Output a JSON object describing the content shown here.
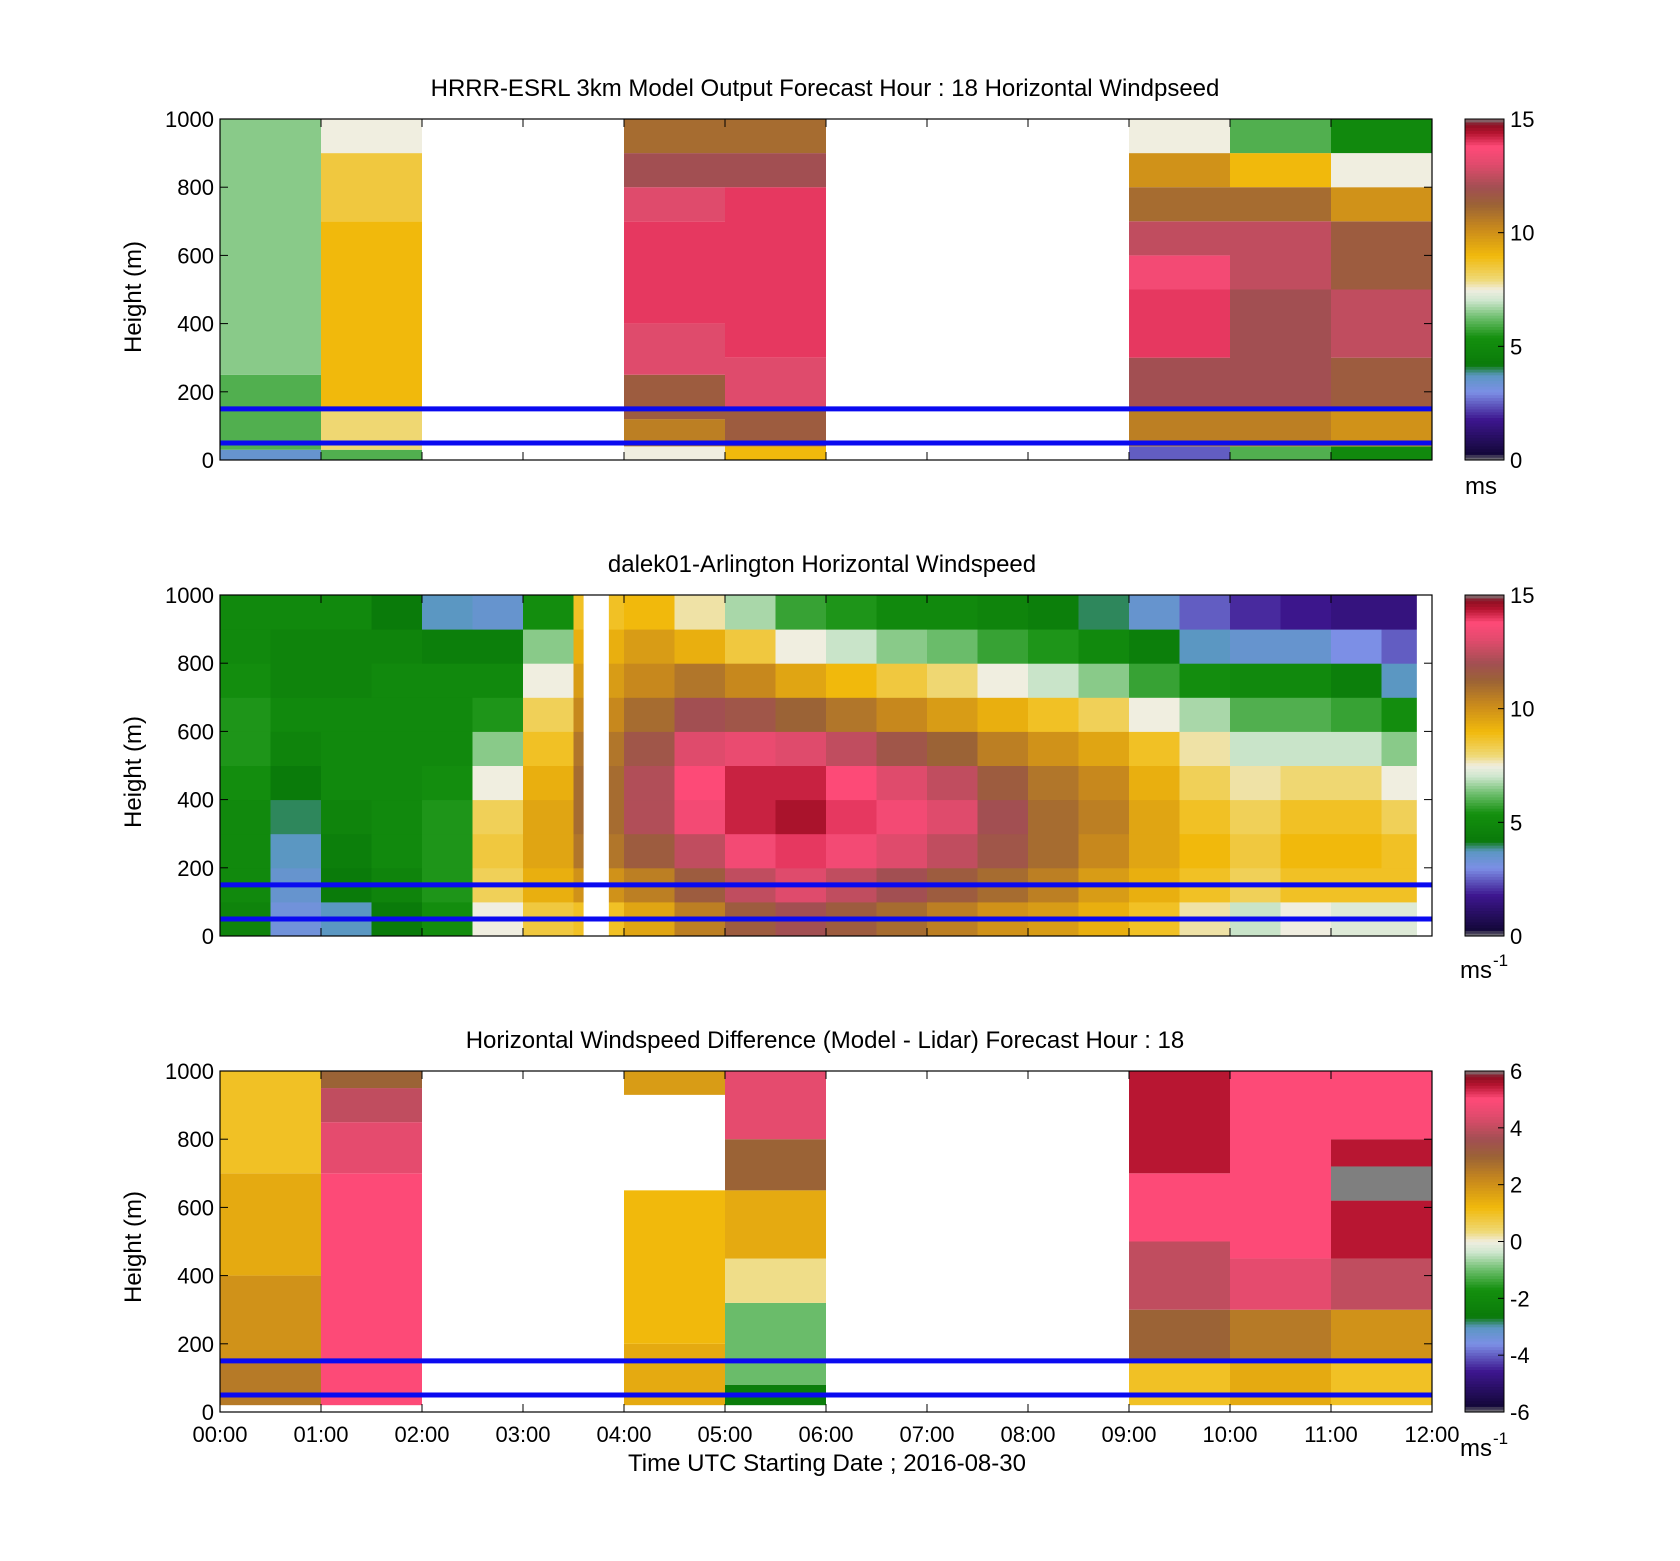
{
  "chart_data": [
    {
      "type": "heatmap",
      "id": "model",
      "title": "HRRR-ESRL 3km Model Output   Forecast Hour : 18 Horizontal Windpseed",
      "ylabel": "Height (m)",
      "xlabel": "",
      "ylim": [
        0,
        1000
      ],
      "xlim": [
        0,
        12
      ],
      "yticks": [
        "0",
        "200",
        "400",
        "600",
        "800",
        "1000"
      ],
      "colorbar": {
        "min": 0,
        "max": 15,
        "ticks": [
          "0",
          "5",
          "10",
          "15"
        ],
        "unit": "ms",
        "unit_sup": ""
      },
      "reference_lines_m": [
        150,
        50
      ],
      "bands": [
        {
          "hour_start": 0,
          "hour_end": 1,
          "levels": [
            [
              0,
              30,
              3.5
            ],
            [
              30,
              250,
              6.0
            ],
            [
              250,
              1000,
              6.5
            ]
          ]
        },
        {
          "hour_start": 1,
          "hour_end": 2,
          "levels": [
            [
              0,
              30,
              6.0
            ],
            [
              30,
              150,
              8.0
            ],
            [
              150,
              700,
              9.0
            ],
            [
              700,
              900,
              8.5
            ],
            [
              900,
              1000,
              7.5
            ]
          ]
        },
        {
          "hour_start": 4,
          "hour_end": 5,
          "levels": [
            [
              0,
              40,
              7.5
            ],
            [
              40,
              120,
              10.5
            ],
            [
              120,
              250,
              11.5
            ],
            [
              250,
              400,
              13.0
            ],
            [
              400,
              700,
              14.0
            ],
            [
              700,
              800,
              13.0
            ],
            [
              800,
              900,
              12.0
            ],
            [
              900,
              1000,
              11.0
            ]
          ]
        },
        {
          "hour_start": 5,
          "hour_end": 6,
          "levels": [
            [
              0,
              40,
              9.0
            ],
            [
              40,
              150,
              11.5
            ],
            [
              150,
              300,
              13.0
            ],
            [
              300,
              800,
              14.0
            ],
            [
              800,
              900,
              12.0
            ],
            [
              900,
              1000,
              11.0
            ]
          ]
        },
        {
          "hour_start": 9,
          "hour_end": 10,
          "levels": [
            [
              0,
              40,
              2.5
            ],
            [
              40,
              150,
              10.5
            ],
            [
              150,
              300,
              12.0
            ],
            [
              300,
              500,
              14.0
            ],
            [
              500,
              600,
              13.5
            ],
            [
              600,
              700,
              12.5
            ],
            [
              700,
              800,
              11.0
            ],
            [
              800,
              900,
              10.0
            ],
            [
              900,
              1000,
              7.5
            ]
          ]
        },
        {
          "hour_start": 10,
          "hour_end": 11,
          "levels": [
            [
              0,
              40,
              6.0
            ],
            [
              40,
              150,
              10.5
            ],
            [
              150,
              500,
              12.0
            ],
            [
              500,
              700,
              12.5
            ],
            [
              700,
              800,
              11.0
            ],
            [
              800,
              900,
              9.0
            ],
            [
              900,
              1000,
              6.0
            ]
          ]
        },
        {
          "hour_start": 11,
          "hour_end": 12,
          "levels": [
            [
              0,
              40,
              5.0
            ],
            [
              40,
              150,
              10.0
            ],
            [
              150,
              300,
              11.5
            ],
            [
              300,
              500,
              12.5
            ],
            [
              500,
              700,
              11.5
            ],
            [
              700,
              800,
              10.0
            ],
            [
              800,
              900,
              7.5
            ],
            [
              900,
              1000,
              5.0
            ]
          ]
        }
      ]
    },
    {
      "type": "heatmap",
      "id": "lidar",
      "title": "dalek01-Arlington  Horizontal Windspeed",
      "ylabel": "Height (m)",
      "xlabel": "",
      "ylim": [
        0,
        1000
      ],
      "xlim": [
        0,
        12
      ],
      "yticks": [
        "0",
        "200",
        "400",
        "600",
        "800",
        "1000"
      ],
      "colorbar": {
        "min": 0,
        "max": 15,
        "ticks": [
          "0",
          "5",
          "10",
          "15"
        ],
        "unit": "ms",
        "unit_sup": "-1"
      },
      "reference_lines_m": [
        150,
        50
      ],
      "profile_hours": [
        0,
        0.5,
        1,
        1.5,
        2,
        2.5,
        3,
        3.5,
        4,
        4.5,
        5,
        5.5,
        6,
        6.5,
        7,
        7.5,
        8,
        8.5,
        9,
        9.5,
        10,
        10.5,
        11,
        11.5,
        11.85
      ],
      "profile_heights_m": [
        0,
        100,
        200,
        300,
        400,
        500,
        600,
        700,
        800,
        900,
        1000
      ],
      "profiles": [
        [
          4.5,
          5.0,
          5.0,
          5.0,
          5.0,
          5.5,
          5.5,
          5.5,
          5.0,
          5.0,
          5.0
        ],
        [
          3.0,
          3.5,
          3.5,
          4.0,
          4.0,
          4.5,
          5.0,
          5.0,
          4.5,
          5.0,
          5.0
        ],
        [
          3.5,
          4.0,
          4.5,
          4.5,
          5.0,
          5.0,
          5.0,
          5.0,
          4.5,
          5.0,
          5.0
        ],
        [
          4.0,
          4.5,
          5.0,
          5.0,
          5.0,
          5.0,
          5.0,
          5.0,
          5.0,
          4.5,
          4.0
        ],
        [
          5.0,
          5.5,
          5.5,
          5.5,
          5.5,
          5.0,
          5.0,
          5.0,
          5.0,
          4.0,
          3.5
        ],
        [
          7.0,
          8.0,
          8.5,
          8.5,
          8.0,
          7.0,
          6.0,
          5.0,
          5.0,
          4.0,
          3.0
        ],
        [
          8.0,
          9.0,
          9.5,
          9.5,
          9.5,
          9.0,
          8.5,
          8.0,
          7.0,
          6.0,
          4.5
        ],
        [
          8.0,
          9.5,
          10.5,
          11.0,
          11.0,
          11.0,
          10.5,
          10.0,
          9.5,
          9.0,
          8.5
        ],
        [
          9.0,
          10.0,
          11.0,
          12.0,
          12.5,
          12.0,
          11.5,
          10.5,
          10.0,
          9.5,
          8.5
        ],
        [
          10.0,
          11.0,
          12.0,
          13.0,
          14.0,
          13.5,
          12.5,
          11.5,
          10.0,
          8.5,
          7.0
        ],
        [
          11.0,
          12.0,
          13.0,
          14.0,
          14.5,
          14.0,
          12.5,
          11.0,
          9.5,
          7.5,
          6.0
        ],
        [
          11.5,
          12.5,
          13.5,
          14.5,
          14.5,
          14.0,
          12.0,
          10.5,
          8.5,
          6.5,
          5.0
        ],
        [
          11.0,
          12.0,
          13.0,
          14.0,
          14.0,
          13.5,
          11.5,
          10.0,
          8.0,
          6.0,
          5.0
        ],
        [
          10.5,
          11.5,
          12.5,
          13.5,
          13.5,
          12.5,
          11.0,
          9.5,
          7.5,
          5.5,
          4.5
        ],
        [
          10.0,
          11.0,
          12.0,
          13.0,
          13.0,
          12.0,
          10.5,
          9.0,
          7.0,
          5.5,
          4.5
        ],
        [
          9.5,
          10.5,
          11.5,
          12.0,
          12.0,
          11.0,
          10.0,
          8.5,
          6.5,
          5.0,
          4.5
        ],
        [
          9.5,
          10.0,
          11.0,
          11.0,
          11.0,
          10.5,
          9.5,
          8.0,
          6.0,
          5.0,
          4.0
        ],
        [
          9.0,
          9.5,
          10.0,
          10.5,
          10.5,
          10.0,
          9.0,
          7.5,
          5.5,
          4.5,
          3.5
        ],
        [
          8.5,
          9.0,
          9.5,
          9.5,
          9.5,
          9.0,
          8.5,
          6.5,
          5.0,
          4.0,
          3.0
        ],
        [
          7.0,
          8.5,
          9.0,
          9.0,
          8.5,
          8.0,
          7.5,
          6.0,
          4.5,
          3.0,
          2.0
        ],
        [
          6.0,
          8.0,
          8.5,
          8.5,
          8.0,
          7.5,
          6.5,
          5.5,
          4.5,
          2.5,
          1.5
        ],
        [
          6.5,
          8.5,
          9.0,
          9.0,
          8.5,
          7.5,
          6.5,
          5.5,
          4.5,
          2.5,
          1.0
        ],
        [
          6.0,
          8.5,
          9.0,
          9.0,
          8.5,
          7.5,
          6.5,
          5.0,
          4.0,
          2.0,
          1.0
        ],
        [
          6.0,
          8.5,
          9.0,
          8.5,
          8.0,
          7.0,
          6.0,
          4.5,
          3.0,
          2.0,
          1.0
        ],
        [
          5.5,
          8.0,
          8.5,
          8.0,
          7.5,
          6.5,
          5.5,
          4.5,
          3.0,
          2.0,
          1.0
        ]
      ],
      "gaps": [
        {
          "hour_start": 3.6,
          "hour_end": 3.85,
          "height_start": 0,
          "height_end": 1000,
          "note": ""
        },
        {
          "hour_start": 11.85,
          "hour_end": 12,
          "height_start": 0,
          "height_end": 1000,
          "note": ""
        }
      ]
    },
    {
      "type": "heatmap",
      "id": "difference",
      "title": "Horizontal Windspeed Difference (Model - Lidar) Forecast Hour : 18",
      "ylabel": "Height (m)",
      "xlabel": "Time UTC  Starting Date ; 2016-08-30",
      "ylim": [
        0,
        1000
      ],
      "xlim": [
        0,
        12
      ],
      "yticks": [
        "0",
        "200",
        "400",
        "600",
        "800",
        "1000"
      ],
      "xticks": [
        "00:00",
        "01:00",
        "02:00",
        "03:00",
        "04:00",
        "05:00",
        "06:00",
        "07:00",
        "08:00",
        "09:00",
        "10:00",
        "11:00",
        "12:00"
      ],
      "colorbar": {
        "min": -6,
        "max": 6,
        "ticks": [
          "-6",
          "-4",
          "-2",
          "0",
          "2",
          "4",
          "6"
        ],
        "unit": "ms",
        "unit_sup": "-1"
      },
      "reference_lines_m": [
        150,
        50
      ],
      "bands": [
        {
          "hour_start": 0,
          "hour_end": 1,
          "levels": [
            [
              20,
              150,
              2.5
            ],
            [
              150,
              400,
              2.0
            ],
            [
              400,
              700,
              1.5
            ],
            [
              700,
              1000,
              1.0
            ]
          ]
        },
        {
          "hour_start": 1,
          "hour_end": 2,
          "levels": [
            [
              20,
              700,
              5.0
            ],
            [
              700,
              850,
              4.5
            ],
            [
              850,
              950,
              4.0
            ],
            [
              950,
              1000,
              3.0
            ]
          ]
        },
        {
          "hour_start": 4,
          "hour_end": 5,
          "levels": [
            [
              20,
              200,
              1.5
            ],
            [
              200,
              650,
              1.2
            ],
            [
              930,
              1000,
              1.8
            ]
          ]
        },
        {
          "hour_start": 5,
          "hour_end": 6,
          "levels": [
            [
              20,
              80,
              -2.5
            ],
            [
              80,
              320,
              -1.0
            ],
            [
              320,
              450,
              0.3
            ],
            [
              450,
              650,
              1.5
            ],
            [
              650,
              800,
              3.0
            ],
            [
              800,
              1000,
              4.5
            ]
          ]
        },
        {
          "hour_start": 9,
          "hour_end": 10,
          "levels": [
            [
              20,
              150,
              1.0
            ],
            [
              150,
              300,
              3.0
            ],
            [
              300,
              500,
              4.0
            ],
            [
              500,
              700,
              5.0
            ],
            [
              700,
              1000,
              5.5
            ]
          ]
        },
        {
          "hour_start": 10,
          "hour_end": 11,
          "levels": [
            [
              20,
              150,
              1.5
            ],
            [
              150,
              300,
              2.5
            ],
            [
              300,
              450,
              4.5
            ],
            [
              450,
              1000,
              5.0
            ]
          ]
        },
        {
          "hour_start": 11,
          "hour_end": 12,
          "levels": [
            [
              20,
              150,
              1.0
            ],
            [
              150,
              300,
              2.0
            ],
            [
              300,
              450,
              4.0
            ],
            [
              450,
              620,
              5.5
            ],
            [
              720,
              800,
              5.5
            ],
            [
              800,
              1000,
              5.0
            ]
          ]
        }
      ],
      "gaps": [
        {
          "hour_start": 11,
          "hour_end": 12,
          "height_start": 620,
          "height_end": 720,
          "note": ""
        }
      ]
    }
  ]
}
